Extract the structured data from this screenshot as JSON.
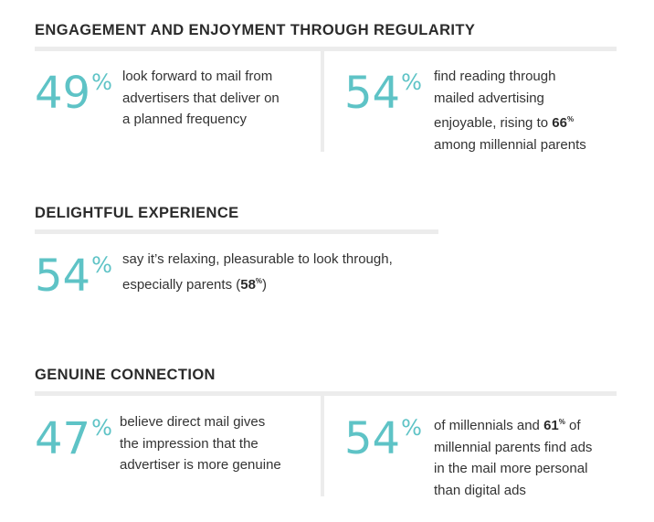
{
  "sections": [
    {
      "title": "ENGAGEMENT AND ENJOYMENT THROUGH REGULARITY",
      "stats": [
        {
          "value": "49",
          "unit": "%",
          "lines": [
            "look forward to mail from",
            "advertisers that deliver on",
            "a planned frequency"
          ]
        },
        {
          "value": "54",
          "unit": "%",
          "lines": [
            "find reading through",
            "mailed advertising",
            "enjoyable, rising to ",
            "among millennial parents"
          ],
          "highlight": "66",
          "highlight_unit": "%"
        }
      ]
    },
    {
      "title": "DELIGHTFUL EXPERIENCE",
      "stats": [
        {
          "value": "54",
          "unit": "%",
          "lines": [
            "say it’s relaxing, pleasurable to look through,",
            "especially parents (",
            ")"
          ],
          "highlight": "58",
          "highlight_unit": "%"
        }
      ]
    },
    {
      "title": "GENUINE CONNECTION",
      "stats": [
        {
          "value": "47",
          "unit": "%",
          "lines": [
            "believe direct mail gives",
            "the impression that the",
            "advertiser is more genuine"
          ]
        },
        {
          "value": "54",
          "unit": "%",
          "lines": [
            "of millennials and ",
            " of",
            "millennial parents find ads",
            "in the mail more personal",
            "than digital ads"
          ],
          "highlight": "61",
          "highlight_unit": "%"
        }
      ]
    }
  ]
}
